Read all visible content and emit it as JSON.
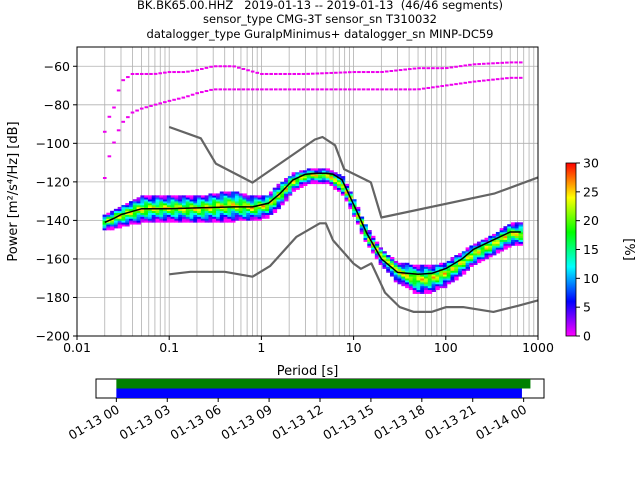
{
  "header": {
    "title_line1": "BK.BK65.00.HHZ   2019-01-13 -- 2019-01-13  (46/46 segments)",
    "title_line2": "sensor_type CMG-3T sensor_sn T310032",
    "title_line3": "datalogger_type GuralpMinimus+ datalogger_sn MINP-DC59"
  },
  "chart_data": [
    {
      "type": "heatmap",
      "title": "BK.BK65.00.HHZ   2019-01-13 -- 2019-01-13  (46/46 segments)",
      "xlabel": "Period [s]",
      "ylabel": "Power [m²/s⁴/Hz] [dB]",
      "xscale": "log",
      "xlim": [
        0.01,
        1000
      ],
      "ylim": [
        -200,
        -50
      ],
      "x_ticks": [
        "0.01",
        "0.1",
        "1",
        "10",
        "100",
        "1000"
      ],
      "y_ticks": [
        "-60",
        "-80",
        "-100",
        "-120",
        "-140",
        "-160",
        "-180",
        "-200"
      ],
      "grid": true,
      "colorbar": {
        "label": "[%]",
        "min": 0,
        "max": 30,
        "ticks": [
          "0",
          "5",
          "10",
          "15",
          "20",
          "25",
          "30"
        ]
      },
      "colors": {
        "noise_model": "#646464",
        "mode_curve": "#000000",
        "cmap": [
          "#ff00ff",
          "#0000ff",
          "#00ffff",
          "#00ff00",
          "#ffff00",
          "#ff0000"
        ]
      },
      "series": [
        {
          "name": "",
          "x": [
            0.1,
            0.22,
            0.32,
            0.8,
            3.8,
            4.6,
            6.3,
            7.9,
            15.4,
            20,
            340,
            10000
          ],
          "y": [
            -91.5,
            -97.4,
            -110.5,
            -120.4,
            -98,
            -96.7,
            -101,
            -113.5,
            -120.3,
            -138.5,
            -126,
            -100
          ]
        },
        {
          "name": "",
          "x": [
            0.1,
            0.17,
            0.4,
            0.8,
            1.24,
            2.4,
            4.3,
            5,
            6,
            10,
            12,
            15.6,
            21.9,
            31.6,
            45,
            70,
            101,
            154,
            328,
            600,
            10000
          ],
          "y": [
            -168,
            -166.7,
            -166.7,
            -169.2,
            -163.7,
            -148.5,
            -141.5,
            -141.5,
            -150.4,
            -162.4,
            -165.1,
            -162.3,
            -177.5,
            -185,
            -187.5,
            -187.5,
            -185,
            -185,
            -187.5,
            -184.4,
            -168.5
          ]
        },
        {
          "name": "",
          "x": [
            0.02,
            0.025,
            0.03,
            0.05,
            0.1,
            0.2,
            0.5,
            0.8,
            1.2,
            1.6,
            2.2,
            3,
            4,
            5,
            6,
            7.5,
            9,
            11,
            14,
            20,
            30,
            50,
            70,
            100,
            150,
            200,
            300,
            500,
            650
          ],
          "y": [
            -141,
            -139,
            -137,
            -134,
            -134,
            -133.5,
            -133,
            -133,
            -131,
            -126,
            -119,
            -116,
            -115.5,
            -115.5,
            -116,
            -119,
            -127,
            -136,
            -147,
            -160,
            -167,
            -168,
            -167.5,
            -165,
            -160,
            -155,
            -151,
            -146,
            -146
          ]
        }
      ],
      "psd_distribution": [
        {
          "period": 0.02,
          "db_min": -145,
          "db_max": -138
        },
        {
          "period": 0.03,
          "db_min": -143,
          "db_max": -133
        },
        {
          "period": 0.05,
          "db_min": -141,
          "db_max": -128
        },
        {
          "period": 0.1,
          "db_min": -140,
          "db_max": -128
        },
        {
          "period": 0.2,
          "db_min": -141,
          "db_max": -128
        },
        {
          "period": 0.5,
          "db_min": -140,
          "db_max": -125
        },
        {
          "period": 0.8,
          "db_min": -140,
          "db_max": -128
        },
        {
          "period": 1.2,
          "db_min": -138,
          "db_max": -127
        },
        {
          "period": 1.6,
          "db_min": -133,
          "db_max": -121
        },
        {
          "period": 2.2,
          "db_min": -125,
          "db_max": -116
        },
        {
          "period": 3,
          "db_min": -121,
          "db_max": -114
        },
        {
          "period": 4,
          "db_min": -120,
          "db_max": -114
        },
        {
          "period": 5.5,
          "db_min": -121,
          "db_max": -114
        },
        {
          "period": 7.5,
          "db_min": -126,
          "db_max": -117
        },
        {
          "period": 9,
          "db_min": -132,
          "db_max": -124
        },
        {
          "period": 11,
          "db_min": -141,
          "db_max": -133
        },
        {
          "period": 14,
          "db_min": -152,
          "db_max": -144
        },
        {
          "period": 20,
          "db_min": -163,
          "db_max": -155
        },
        {
          "period": 30,
          "db_min": -172,
          "db_max": -162
        },
        {
          "period": 50,
          "db_min": -178,
          "db_max": -164
        },
        {
          "period": 70,
          "db_min": -177,
          "db_max": -164
        },
        {
          "period": 100,
          "db_min": -174,
          "db_max": -162
        },
        {
          "period": 150,
          "db_min": -168,
          "db_max": -157
        },
        {
          "period": 200,
          "db_min": -163,
          "db_max": -153
        },
        {
          "period": 300,
          "db_min": -159,
          "db_max": -149
        },
        {
          "period": 500,
          "db_min": -153,
          "db_max": -142
        },
        {
          "period": 650,
          "db_min": -153,
          "db_max": -142
        }
      ],
      "outlier_traces": [
        {
          "x": [
            0.02,
            0.022,
            0.025,
            0.03,
            0.04,
            0.05,
            0.07,
            0.1,
            0.15,
            0.2,
            0.3,
            0.5,
            1,
            3,
            10,
            20,
            50,
            100,
            200,
            500,
            650
          ],
          "y": [
            -94,
            -87,
            -82,
            -68,
            -64,
            -64,
            -64,
            -63,
            -63,
            -62,
            -60,
            -60,
            -64,
            -64,
            -63,
            -63,
            -61,
            -61,
            -59,
            -58,
            -58
          ]
        },
        {
          "x": [
            0.02,
            0.022,
            0.025,
            0.03,
            0.04,
            0.05,
            0.07,
            0.1,
            0.15,
            0.2,
            0.3,
            0.5,
            1,
            3,
            10,
            20,
            50,
            100,
            200,
            500,
            650
          ],
          "y": [
            -118,
            -108,
            -100,
            -90,
            -84,
            -82,
            -80,
            -78,
            -76,
            -74,
            -72,
            -72,
            -72,
            -72,
            -72,
            -72,
            -72,
            -70,
            -68,
            -66,
            -66
          ]
        }
      ]
    },
    {
      "type": "bar",
      "title": "",
      "x_ticks": [
        "01-13 00",
        "01-13 03",
        "01-13 06",
        "01-13 09",
        "01-13 12",
        "01-13 15",
        "01-13 18",
        "01-13 21",
        "01-14 00"
      ],
      "xlim_hours": [
        -1.2,
        25.2
      ],
      "series": [
        {
          "name": "",
          "color": "#008000",
          "start_hour": 0,
          "end_hour": 24.4
        },
        {
          "name": "",
          "color": "#0000ff",
          "start_hour": 0,
          "end_hour": 23.9
        }
      ]
    }
  ]
}
